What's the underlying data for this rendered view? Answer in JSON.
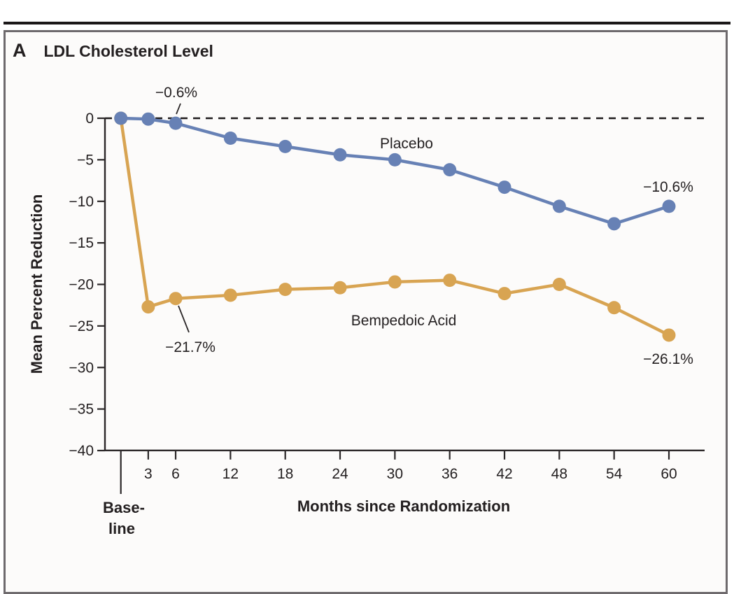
{
  "panel": {
    "letter": "A",
    "title": "LDL Cholesterol Level"
  },
  "colors": {
    "placebo": "#6781b5",
    "bempedoic_acid": "#d8a452",
    "axis": "#2b2728",
    "text": "#231f20",
    "frame_border": "#6e6a6d",
    "top_rule": "#1a1718",
    "background": "#fcfbfa"
  },
  "chart_data": {
    "type": "line",
    "title": "LDL Cholesterol Level",
    "xlabel": "Months since Randomization",
    "ylabel": "Mean Percent Reduction",
    "ylim": [
      -40,
      0
    ],
    "grid": false,
    "zero_reference_line": "dashed",
    "baseline_tick_label": [
      "Base-",
      "line"
    ],
    "x_months": [
      0,
      3,
      6,
      12,
      18,
      24,
      30,
      36,
      42,
      48,
      54,
      60
    ],
    "x_tick_months": [
      3,
      6,
      12,
      18,
      24,
      30,
      36,
      42,
      48,
      54,
      60
    ],
    "x_tick_labels": [
      "3",
      "6",
      "12",
      "18",
      "24",
      "30",
      "36",
      "42",
      "48",
      "54",
      "60"
    ],
    "y_ticks": [
      0,
      -5,
      -10,
      -15,
      -20,
      -25,
      -30,
      -35,
      -40
    ],
    "y_tick_labels": [
      "0",
      "−5",
      "−10",
      "−15",
      "−20",
      "−25",
      "−30",
      "−35",
      "−40"
    ],
    "series": [
      {
        "name": "Placebo",
        "color": "#6781b5",
        "values": [
          0,
          -0.1,
          -0.6,
          -2.4,
          -3.4,
          -4.4,
          -5.0,
          -6.2,
          -8.3,
          -10.6,
          -12.7,
          -10.6
        ]
      },
      {
        "name": "Bempedoic Acid",
        "color": "#d8a452",
        "values": [
          0,
          -22.7,
          -21.7,
          -21.3,
          -20.6,
          -20.4,
          -19.7,
          -19.5,
          -21.1,
          -20.0,
          -22.8,
          -26.1
        ]
      }
    ],
    "annotations": [
      {
        "text": "−0.6%",
        "series": "Placebo",
        "month": 6
      },
      {
        "text": "−21.7%",
        "series": "Bempedoic Acid",
        "month": 6
      },
      {
        "text": "−10.6%",
        "series": "Placebo",
        "month": 60
      },
      {
        "text": "−26.1%",
        "series": "Bempedoic Acid",
        "month": 60
      }
    ],
    "legend_position": "inline-labels"
  }
}
